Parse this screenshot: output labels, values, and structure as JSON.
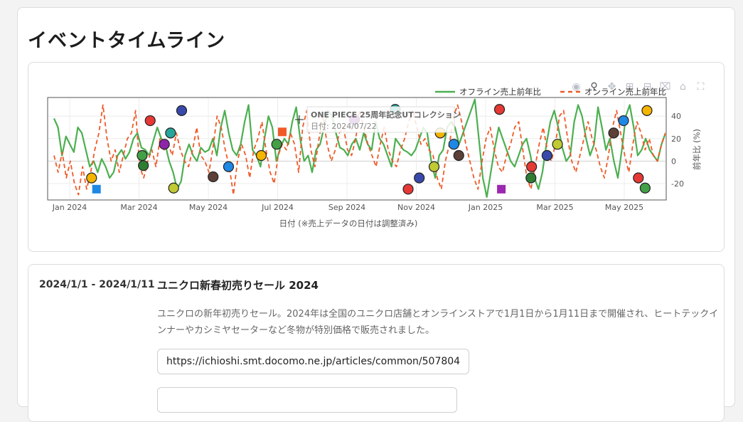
{
  "page": {
    "title": "イベントタイムライン"
  },
  "toolbar": {
    "icons": [
      "camera-icon",
      "zoom-icon",
      "pan-icon",
      "zoom-in-icon",
      "zoom-out-icon",
      "autoscale-icon",
      "reset-axes-icon",
      "fullscreen-icon"
    ]
  },
  "chart_data": {
    "type": "line",
    "xlabel": "日付 (※売上データの日付は調整済み)",
    "ylabel": "前年比 (%)",
    "ylim": [
      -34,
      56
    ],
    "grid": true,
    "legend_placement": "top-right",
    "x_ticks": [
      "Jan 2024",
      "Mar 2024",
      "May 2024",
      "Jul 2024",
      "Sep 2024",
      "Nov 2024",
      "Jan 2025",
      "Mar 2025",
      "May 2025"
    ],
    "y_ticks": [
      40,
      20,
      0,
      -20
    ],
    "series": [
      {
        "name": "オフライン売上前年比",
        "color": "#4caf50",
        "style": "solid",
        "values": [
          38,
          30,
          5,
          22,
          15,
          8,
          30,
          25,
          10,
          -5,
          0,
          -10,
          2,
          -5,
          -15,
          -10,
          5,
          10,
          2,
          8,
          20,
          25,
          12,
          10,
          5,
          18,
          30,
          20,
          15,
          0,
          -10,
          -25,
          -18,
          5,
          15,
          5,
          0,
          12,
          8,
          10,
          20,
          5,
          30,
          45,
          25,
          10,
          5,
          15,
          35,
          50,
          10,
          5,
          -5,
          20,
          40,
          30,
          0,
          12,
          20,
          15,
          35,
          48,
          20,
          0,
          5,
          -10,
          10,
          15,
          30,
          45,
          40,
          25,
          12,
          10,
          5,
          15,
          20,
          10,
          25,
          15,
          10,
          35,
          20,
          15,
          5,
          -5,
          20,
          15,
          10,
          8,
          5,
          10,
          20,
          30,
          25,
          0,
          -15,
          5,
          10,
          30,
          35,
          30,
          15,
          25,
          35,
          45,
          55,
          20,
          -15,
          -32,
          -10,
          12,
          30,
          20,
          10,
          0,
          -5,
          5,
          15,
          20,
          5,
          -15,
          -25,
          -10,
          15,
          35,
          45,
          30,
          12,
          0,
          5,
          35,
          50,
          40,
          20,
          5,
          15,
          48,
          30,
          10,
          20,
          0,
          -15,
          10,
          40,
          50,
          30,
          5,
          10,
          20,
          10,
          5,
          0,
          15,
          25
        ]
      },
      {
        "name": "オンライン売上前年比",
        "color": "#f05a28",
        "style": "dashed",
        "values": [
          5,
          -10,
          8,
          -15,
          0,
          -20,
          -30,
          -5,
          -25,
          -10,
          10,
          25,
          50,
          20,
          0,
          10,
          -10,
          5,
          20,
          25,
          45,
          -5,
          -15,
          0,
          10,
          -5,
          20,
          10,
          15,
          5,
          25,
          10,
          0,
          -5,
          10,
          30,
          5,
          0,
          -10,
          12,
          40,
          30,
          10,
          -5,
          -30,
          0,
          15,
          5,
          -15,
          10,
          20,
          35,
          10,
          -10,
          -20,
          5,
          15,
          10,
          25,
          15,
          -10,
          30,
          45,
          10,
          -5,
          20,
          40,
          15,
          0,
          10,
          25,
          30,
          10,
          5,
          20,
          45,
          30,
          15,
          5,
          -5,
          15,
          30,
          10,
          0,
          -5,
          10,
          20,
          35,
          45,
          30,
          15,
          20,
          10,
          5,
          -15,
          -25,
          0,
          15,
          40,
          50,
          35,
          15,
          0,
          -15,
          -25,
          0,
          20,
          30,
          10,
          -5,
          -10,
          5,
          15,
          30,
          35,
          10,
          -15,
          -25,
          -5,
          15,
          30,
          10,
          0,
          15,
          40,
          45,
          20,
          0,
          -10,
          5,
          20,
          35,
          20,
          10,
          -5,
          -15,
          5,
          30,
          45,
          25,
          5,
          -10,
          15,
          35,
          25,
          10,
          20,
          5,
          0,
          15,
          25
        ]
      }
    ],
    "event_markers": [
      {
        "color": "#f4b400",
        "shape": "circle",
        "t": 0.07,
        "y": -15
      },
      {
        "color": "#1e88e5",
        "shape": "square",
        "t": 0.078,
        "y": -25
      },
      {
        "color": "#e53935",
        "shape": "circle",
        "t": 0.165,
        "y": 36
      },
      {
        "color": "#43a047",
        "shape": "circle",
        "t": 0.152,
        "y": 5
      },
      {
        "color": "#2e7d32",
        "shape": "circle",
        "t": 0.154,
        "y": -4
      },
      {
        "color": "#8e24aa",
        "shape": "circle",
        "t": 0.188,
        "y": 15
      },
      {
        "color": "#26a69a",
        "shape": "circle",
        "t": 0.198,
        "y": 25
      },
      {
        "color": "#3949ab",
        "shape": "circle",
        "t": 0.216,
        "y": 45
      },
      {
        "color": "#c0ca33",
        "shape": "circle",
        "t": 0.203,
        "y": -24
      },
      {
        "color": "#5d4037",
        "shape": "circle",
        "t": 0.267,
        "y": -14
      },
      {
        "color": "#1e88e5",
        "shape": "circle",
        "t": 0.292,
        "y": -5
      },
      {
        "color": "#f4b400",
        "shape": "circle",
        "t": 0.345,
        "y": 5
      },
      {
        "color": "#f05a28",
        "shape": "square",
        "t": 0.379,
        "y": 26
      },
      {
        "color": "#43a047",
        "shape": "circle",
        "t": 0.37,
        "y": 15
      },
      {
        "color": "#8e24aa",
        "shape": "circle",
        "t": 0.496,
        "y": 37
      },
      {
        "color": "#26a69a",
        "shape": "circle",
        "t": 0.562,
        "y": 46
      },
      {
        "color": "#f4b400",
        "shape": "circle",
        "t": 0.635,
        "y": 25
      },
      {
        "color": "#3949ab",
        "shape": "circle",
        "t": 0.601,
        "y": -15
      },
      {
        "color": "#e53935",
        "shape": "circle",
        "t": 0.583,
        "y": -25
      },
      {
        "color": "#c0ca33",
        "shape": "circle",
        "t": 0.625,
        "y": -5
      },
      {
        "color": "#1e88e5",
        "shape": "circle",
        "t": 0.657,
        "y": 15
      },
      {
        "color": "#5d4037",
        "shape": "circle",
        "t": 0.665,
        "y": 5
      },
      {
        "color": "#9c27b0",
        "shape": "square",
        "t": 0.734,
        "y": -25
      },
      {
        "color": "#e53935",
        "shape": "circle",
        "t": 0.731,
        "y": 46
      },
      {
        "color": "#e53935",
        "shape": "circle",
        "t": 0.783,
        "y": -5
      },
      {
        "color": "#2e7d32",
        "shape": "circle",
        "t": 0.782,
        "y": -15
      },
      {
        "color": "#3949ab",
        "shape": "circle",
        "t": 0.808,
        "y": 5
      },
      {
        "color": "#c0ca33",
        "shape": "circle",
        "t": 0.825,
        "y": 15
      },
      {
        "color": "#5d4037",
        "shape": "circle",
        "t": 0.916,
        "y": 25
      },
      {
        "color": "#1e88e5",
        "shape": "circle",
        "t": 0.932,
        "y": 36
      },
      {
        "color": "#f4b400",
        "shape": "circle",
        "t": 0.97,
        "y": 45
      },
      {
        "color": "#e53935",
        "shape": "circle",
        "t": 0.956,
        "y": -15
      },
      {
        "color": "#43a047",
        "shape": "circle",
        "t": 0.967,
        "y": -24
      }
    ],
    "tooltip": {
      "title": "ONE PIECE 25周年記念UTコレクション",
      "date": "日付: 2024/07/22"
    }
  },
  "event": {
    "date_range": "2024/1/1 - 2024/1/11",
    "title": "ユニクロ新春初売りセール 2024",
    "description": "ユニクロの新年初売りセール。2024年は全国のユニクロ店舗とオンラインストアで1月1日から1月11日まで開催され、ヒートテックインナーやカシミヤセーターなど冬物が特別価格で販売されました。",
    "link": "https://ichioshi.smt.docomo.ne.jp/articles/common/507804"
  }
}
